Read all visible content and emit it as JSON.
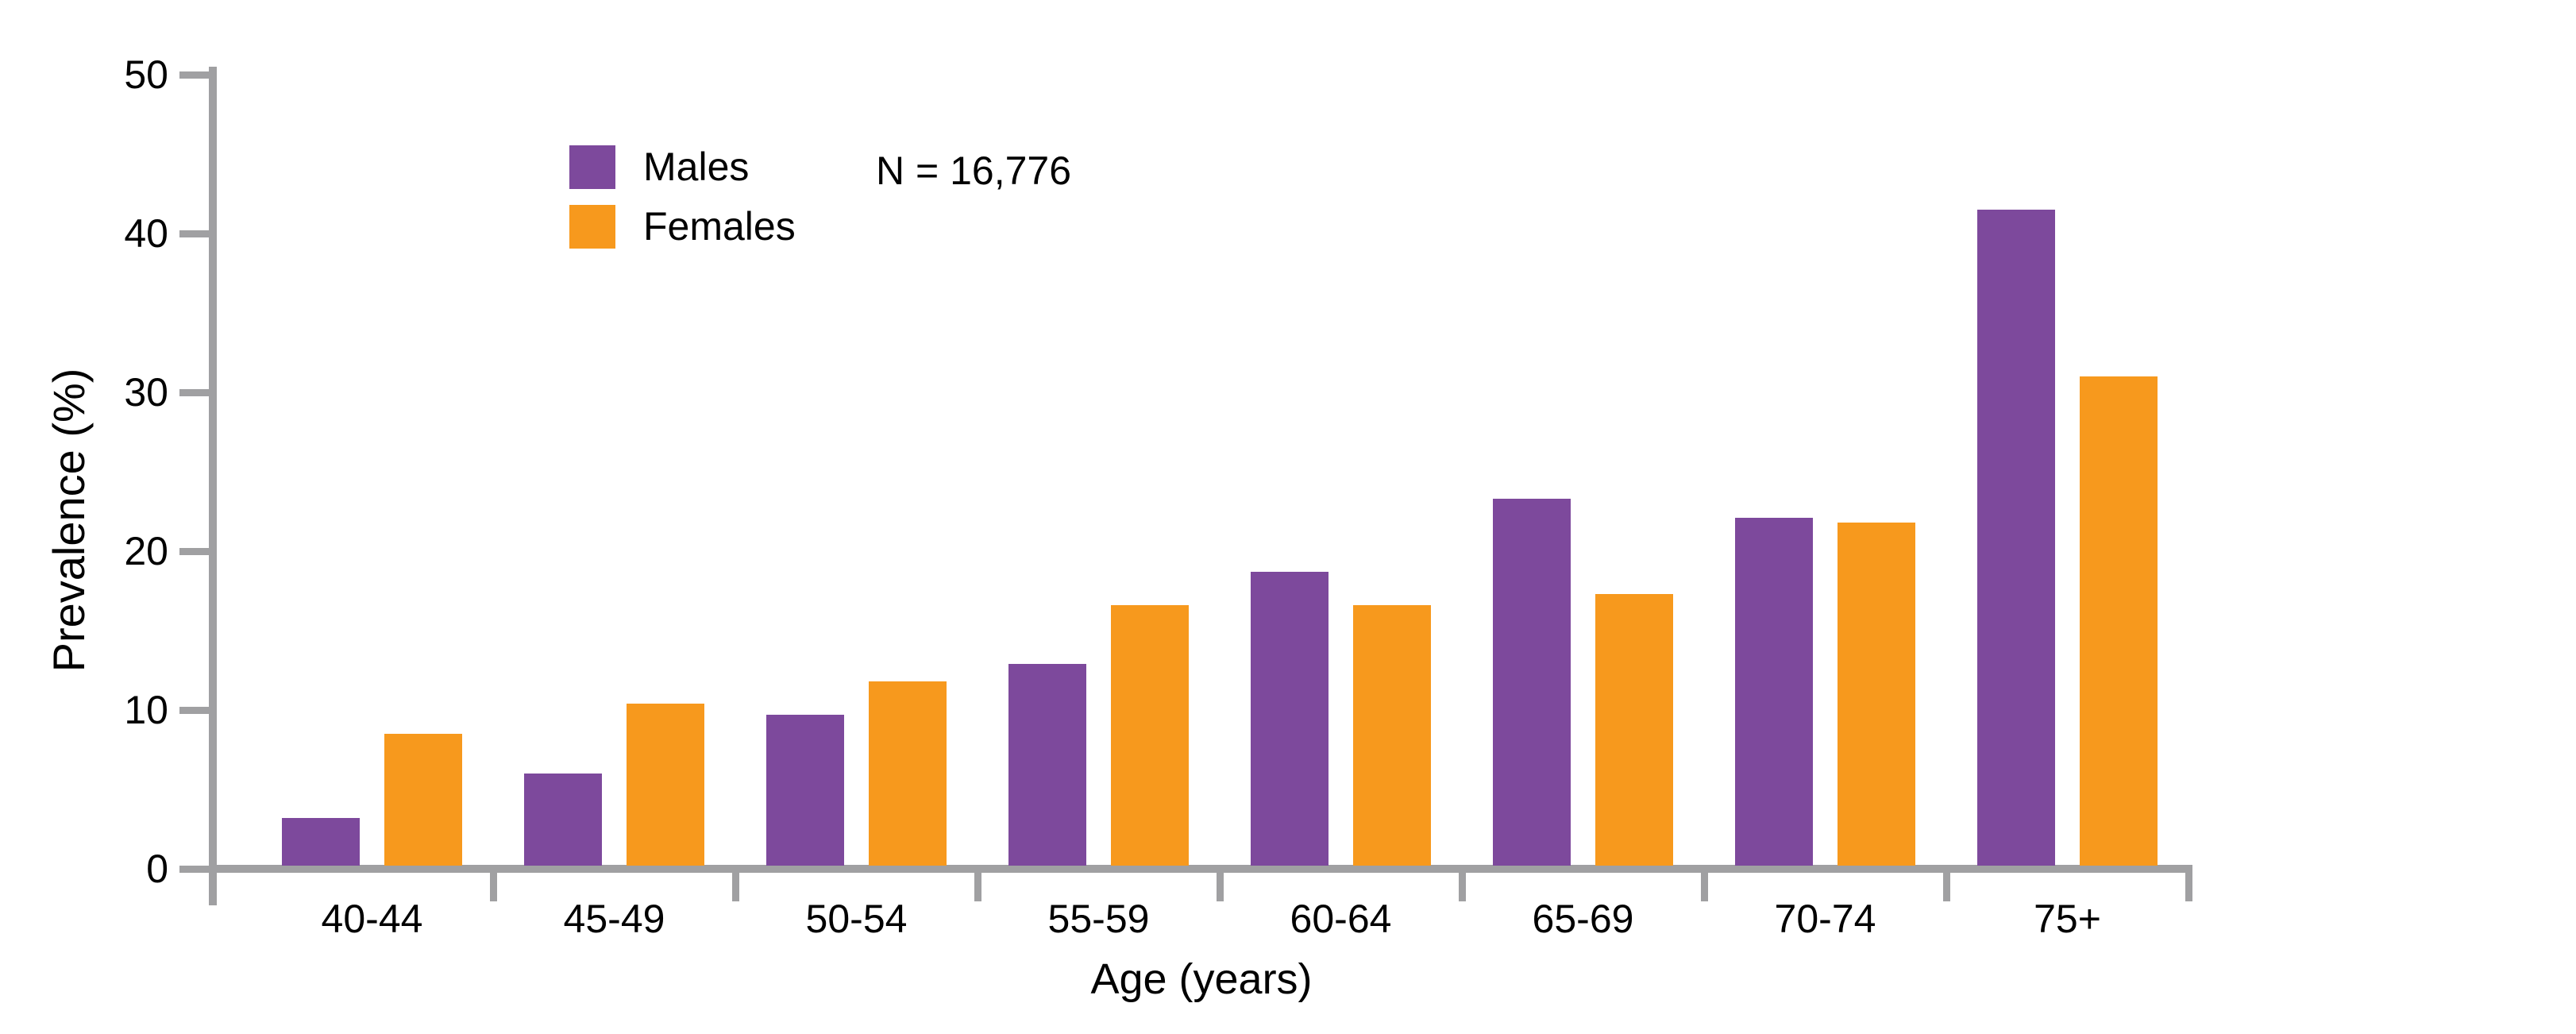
{
  "chart_data": {
    "type": "bar",
    "title": "",
    "xlabel": "Age (years)",
    "ylabel": "Prevalence (%)",
    "annotation": "N = 16,776",
    "categories": [
      "40-44",
      "45-49",
      "50-54",
      "55-59",
      "60-64",
      "65-69",
      "70-74",
      "75+"
    ],
    "series": [
      {
        "name": "Males",
        "color": "#7D499C",
        "values": [
          3.0,
          5.8,
          9.5,
          12.7,
          18.5,
          23.1,
          21.9,
          41.3
        ]
      },
      {
        "name": "Females",
        "color": "#F7991D",
        "values": [
          8.3,
          10.2,
          11.6,
          16.4,
          16.4,
          17.1,
          21.6,
          30.8
        ]
      }
    ],
    "ylim": [
      0,
      50
    ],
    "yticks": [
      0,
      10,
      20,
      30,
      40,
      50
    ],
    "grid": false,
    "legend_position": "upper-left-inside",
    "axis_color": "#A0A0A2",
    "text_color": "#000000"
  }
}
